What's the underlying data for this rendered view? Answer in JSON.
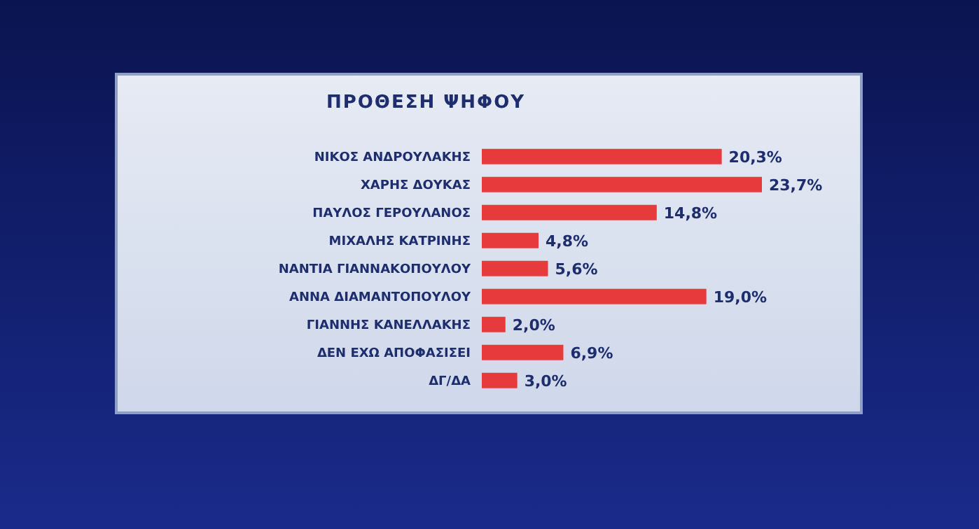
{
  "chart_data": {
    "type": "bar",
    "orientation": "horizontal",
    "title": "ΠΡΟΘΕΣΗ ΨΗΦΟΥ",
    "categories": [
      "ΝΙΚΟΣ ΑΝΔΡΟΥΛΑΚΗΣ",
      "ΧΑΡΗΣ ΔΟΥΚΑΣ",
      "ΠΑΥΛΟΣ ΓΕΡΟΥΛΑΝΟΣ",
      "ΜΙΧΑΛΗΣ ΚΑΤΡΙΝΗΣ",
      "ΝΑΝΤΙΑ ΓΙΑΝΝΑΚΟΠΟΥΛΟΥ",
      "ΑΝΝΑ ΔΙΑΜΑΝΤΟΠΟΥΛΟΥ",
      "ΓΙΑΝΝΗΣ ΚΑΝΕΛΛΑΚΗΣ",
      "ΔΕΝ ΕΧΩ ΑΠΟΦΑΣΙΣΕΙ",
      "ΔΓ/ΔΑ"
    ],
    "values": [
      20.3,
      23.7,
      14.8,
      4.8,
      5.6,
      19.0,
      2.0,
      6.9,
      3.0
    ],
    "value_labels": [
      "20,3%",
      "23,7%",
      "14,8%",
      "4,8%",
      "5,6%",
      "19,0%",
      "2,0%",
      "6,9%",
      "3,0%"
    ],
    "color": "#e63a3c",
    "tick_labels": "y"
  }
}
